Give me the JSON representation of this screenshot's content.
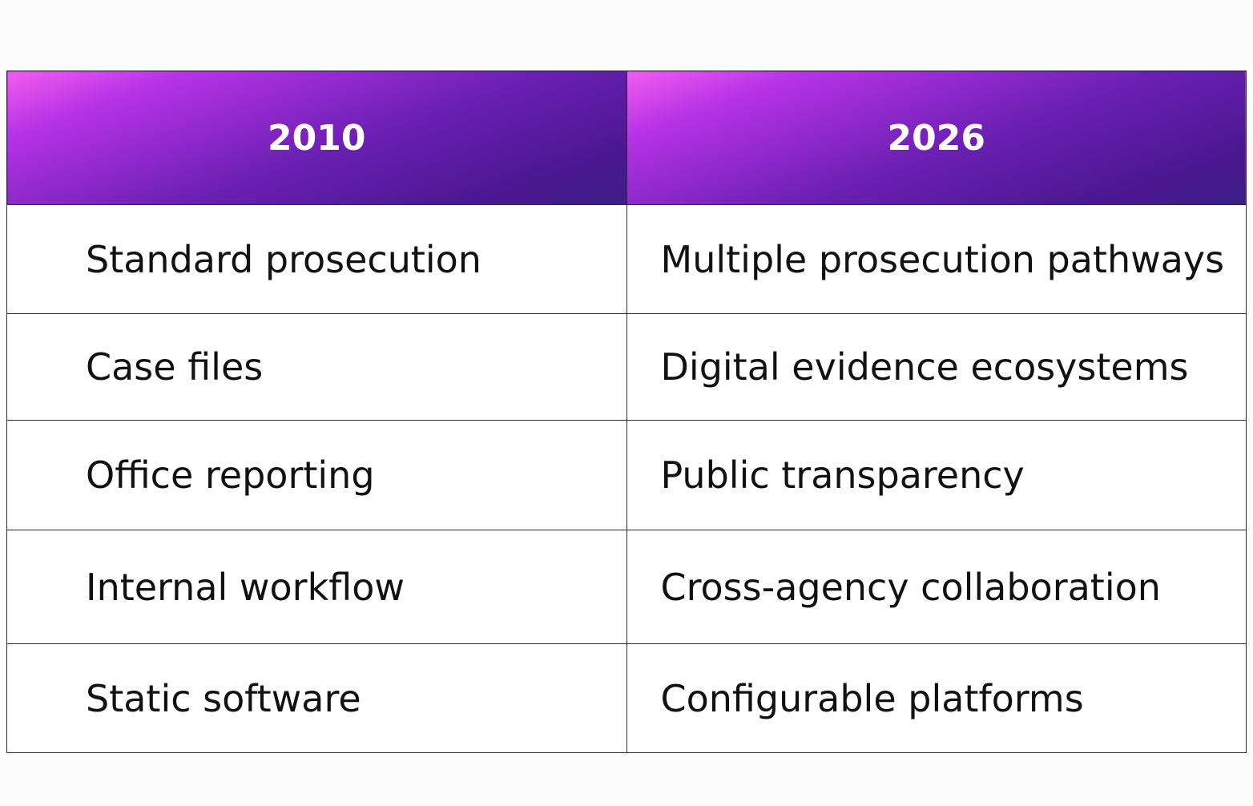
{
  "table": {
    "headers": [
      "2010",
      "2026"
    ],
    "rows": [
      [
        "Standard prosecution",
        "Multiple prosecution pathways"
      ],
      [
        "Case files",
        "Digital evidence ecosystems"
      ],
      [
        "Office reporting",
        "Public transparency"
      ],
      [
        "Internal workflow",
        "Cross-agency collaboration"
      ],
      [
        "Static software",
        "Configurable platforms"
      ]
    ]
  }
}
